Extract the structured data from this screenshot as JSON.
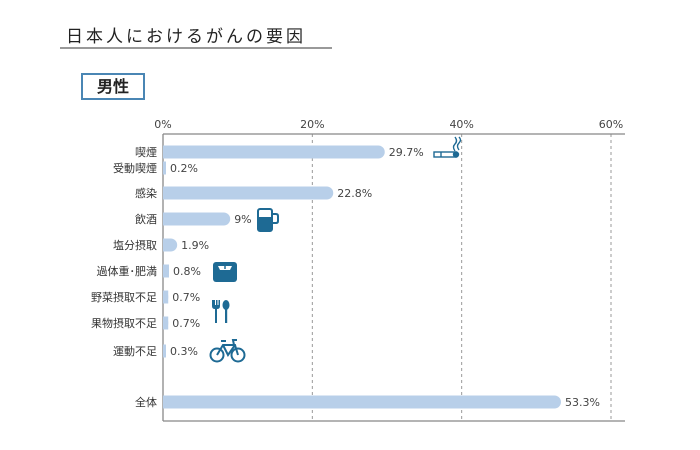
{
  "header": {
    "title": "日本人におけるがんの要因",
    "badge": "男性"
  },
  "colors": {
    "bar": "#b8cfe9",
    "icon": "#1e6a94",
    "grid": "#999999",
    "axis": "#888888"
  },
  "chart_data": {
    "type": "bar",
    "orientation": "horizontal",
    "title": "日本人におけるがんの要因",
    "subtitle": "男性",
    "xlim": [
      0,
      60
    ],
    "xticks": [
      0,
      20,
      40,
      60
    ],
    "xtick_labels": [
      "0%",
      "20%",
      "40%",
      "60%"
    ],
    "grid": "vertical dashed",
    "categories": [
      "喫煙",
      "受動喫煙",
      "感染",
      "飲酒",
      "塩分摂取",
      "過体重･肥満",
      "野菜摂取不足",
      "果物摂取不足",
      "運動不足",
      "全体"
    ],
    "values": [
      29.7,
      0.2,
      22.8,
      9,
      1.9,
      0.8,
      0.7,
      0.7,
      0.3,
      53.3
    ],
    "value_labels": [
      "29.7%",
      "0.2%",
      "22.8%",
      "9%",
      "1.9%",
      "0.8%",
      "0.7%",
      "0.7%",
      "0.3%",
      "53.3%"
    ],
    "icons": [
      "cigarette-icon",
      null,
      null,
      "beer-mug-icon",
      null,
      "scale-icon",
      "fork-spoon-icon",
      null,
      "bicycle-icon",
      null
    ]
  }
}
